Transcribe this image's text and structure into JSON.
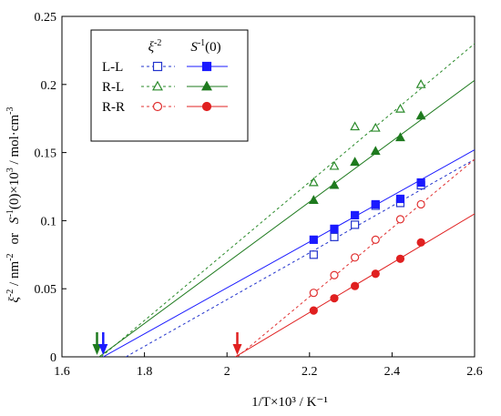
{
  "chart_data": {
    "type": "scatter",
    "xlabel": "1/T×10³ / K⁻¹",
    "ylabel_parts": {
      "xi": "ξ",
      "xi_sup": "-2",
      "unit1": " / nm",
      "unit1_sup": "-2",
      "or": "or",
      "s": "S",
      "s_sup": "-1",
      "rest": "(0)×10",
      "rest_sup": "3",
      "unit2": " / mol·cm",
      "unit2_sup": "-3"
    },
    "xlim": [
      1.6,
      2.6
    ],
    "ylim": [
      0,
      0.25
    ],
    "x_ticks": [
      "1.6",
      "1.8",
      "2",
      "2.2",
      "2.4",
      "2.6"
    ],
    "y_ticks": [
      "0",
      "0.05",
      "0.1",
      "0.15",
      "0.2",
      "0.25"
    ],
    "legend": {
      "placement": "top-left",
      "header_xi": "ξ",
      "header_xi_sup": "-2",
      "header_s": "S",
      "header_s_sup": "-1",
      "header_s_rest": "(0)",
      "rows": [
        "L-L",
        "R-L",
        "R-R"
      ]
    },
    "series": [
      {
        "name": "L-L ξ-2",
        "color": "#2233cc",
        "marker": "square-open",
        "line": "dashed",
        "x": [
          2.21,
          2.26,
          2.31,
          2.36,
          2.42,
          2.47
        ],
        "y": [
          0.075,
          0.088,
          0.097,
          0.111,
          0.113,
          0.126
        ],
        "fit": [
          [
            1.755,
            0
          ],
          [
            2.6,
            0.145
          ]
        ]
      },
      {
        "name": "L-L S-1(0)",
        "color": "#1a1aff",
        "marker": "square-filled",
        "line": "solid",
        "x": [
          2.21,
          2.26,
          2.31,
          2.36,
          2.42,
          2.47
        ],
        "y": [
          0.086,
          0.094,
          0.104,
          0.112,
          0.116,
          0.128
        ],
        "fit": [
          [
            1.7,
            0
          ],
          [
            2.6,
            0.152
          ]
        ]
      },
      {
        "name": "R-L ξ-2",
        "color": "#2a8a2a",
        "marker": "triangle-open",
        "line": "dashed",
        "x": [
          2.21,
          2.26,
          2.31,
          2.36,
          2.42,
          2.47
        ],
        "y": [
          0.128,
          0.14,
          0.169,
          0.168,
          0.182,
          0.2
        ],
        "fit": [
          [
            1.695,
            0
          ],
          [
            2.6,
            0.23
          ]
        ]
      },
      {
        "name": "R-L S-1(0)",
        "color": "#1e7a1e",
        "marker": "triangle-filled",
        "line": "solid",
        "x": [
          2.21,
          2.26,
          2.31,
          2.36,
          2.42,
          2.47
        ],
        "y": [
          0.115,
          0.126,
          0.143,
          0.151,
          0.161,
          0.177
        ],
        "fit": [
          [
            1.69,
            0
          ],
          [
            2.6,
            0.203
          ]
        ]
      },
      {
        "name": "R-R ξ-2",
        "color": "#e03030",
        "marker": "circle-open",
        "line": "dashed",
        "x": [
          2.21,
          2.26,
          2.31,
          2.36,
          2.42,
          2.47
        ],
        "y": [
          0.047,
          0.06,
          0.073,
          0.086,
          0.101,
          0.112
        ],
        "fit": [
          [
            2.025,
            0
          ],
          [
            2.6,
            0.145
          ]
        ]
      },
      {
        "name": "R-R S-1(0)",
        "color": "#e02020",
        "marker": "circle-filled",
        "line": "solid",
        "x": [
          2.21,
          2.26,
          2.31,
          2.36,
          2.42,
          2.47
        ],
        "y": [
          0.034,
          0.043,
          0.052,
          0.061,
          0.072,
          0.084
        ],
        "fit": [
          [
            2.02,
            0
          ],
          [
            2.6,
            0.105
          ]
        ]
      }
    ],
    "arrows": [
      {
        "x": 1.685,
        "color": "#1e7a1e"
      },
      {
        "x": 1.7,
        "color": "#1a1aff"
      },
      {
        "x": 2.025,
        "color": "#e02020"
      }
    ]
  }
}
